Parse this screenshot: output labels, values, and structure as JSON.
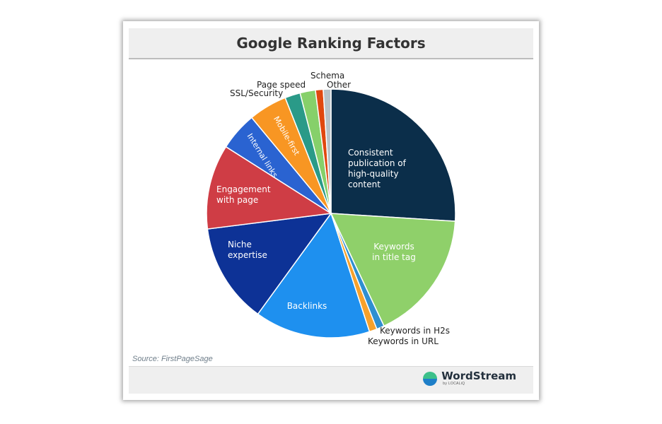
{
  "title": "Google Ranking Factors",
  "source": "Source: FirstPageSage",
  "brand": {
    "name": "WordStream",
    "sub": "by LOCALiQ"
  },
  "chart_data": {
    "type": "pie",
    "title": "Google Ranking Factors",
    "start": "12 o'clock",
    "direction": "clockwise",
    "series": [
      {
        "label": "Consistent publication of high-quality content",
        "value": 26,
        "color": "#0b2e4a",
        "label_position": "inside",
        "text_color": "#ffffff"
      },
      {
        "label": "Keywords in title tag",
        "value": 17,
        "color": "#8fd06a",
        "label_position": "inside",
        "text_color": "#ffffff"
      },
      {
        "label": "Keywords in H2s",
        "value": 1,
        "color": "#2f8fd0",
        "label_position": "outside",
        "text_color": "#222222"
      },
      {
        "label": "Keywords in URL",
        "value": 1,
        "color": "#f7a12b",
        "label_position": "outside",
        "text_color": "#222222"
      },
      {
        "label": "Backlinks",
        "value": 15,
        "color": "#1e90ef",
        "label_position": "inside",
        "text_color": "#ffffff"
      },
      {
        "label": "Niche expertise",
        "value": 13,
        "color": "#0d3296",
        "label_position": "inside",
        "text_color": "#ffffff"
      },
      {
        "label": "Engagement with page",
        "value": 11,
        "color": "#cf3d45",
        "label_position": "inside",
        "text_color": "#ffffff"
      },
      {
        "label": "Internal links",
        "value": 5,
        "color": "#2a63d1",
        "label_position": "inside-rotated",
        "text_color": "#ffffff"
      },
      {
        "label": "Mobile-first",
        "value": 5,
        "color": "#f89623",
        "label_position": "inside-rotated",
        "text_color": "#ffffff"
      },
      {
        "label": "SSL/Security",
        "value": 2,
        "color": "#2a9a88",
        "label_position": "outside",
        "text_color": "#222222"
      },
      {
        "label": "Page speed",
        "value": 2,
        "color": "#86d06a",
        "label_position": "outside",
        "text_color": "#222222"
      },
      {
        "label": "Schema",
        "value": 1,
        "color": "#e0480f",
        "label_position": "outside",
        "text_color": "#222222"
      },
      {
        "label": "Other",
        "value": 1,
        "color": "#b8c2c7",
        "label_position": "outside",
        "text_color": "#222222"
      }
    ]
  }
}
